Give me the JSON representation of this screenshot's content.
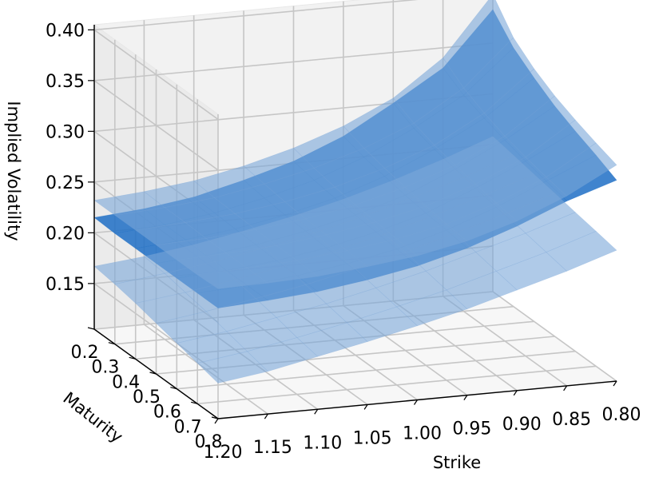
{
  "chart_data": {
    "type": "surface3d",
    "title": "",
    "xlabel": "Strike",
    "ylabel": "Maturity",
    "zlabel": "Implied Volatility",
    "x_ticks": [
      "1.20",
      "1.15",
      "1.10",
      "1.05",
      "1.00",
      "0.95",
      "0.90",
      "0.85",
      "0.80"
    ],
    "y_ticks": [
      "0.2",
      "0.3",
      "0.4",
      "0.5",
      "0.6",
      "0.7",
      "0.8"
    ],
    "z_ticks": [
      "0.15",
      "0.20",
      "0.25",
      "0.30",
      "0.35",
      "0.40"
    ],
    "xlim": [
      0.8,
      1.2
    ],
    "ylim": [
      0.2,
      0.8
    ],
    "zlim": [
      0.105,
      0.405
    ],
    "grid": true,
    "strikes": [
      0.8,
      0.85,
      0.9,
      0.95,
      1.0,
      1.05,
      1.1,
      1.15,
      1.2
    ],
    "maturities": [
      0.2,
      0.3,
      0.4,
      0.5,
      0.6,
      0.7,
      0.8
    ],
    "series": [
      {
        "color": "#1f6fc5",
        "opacity": 0.85,
        "z": [
          [
            0.383,
            0.33,
            0.3,
            0.272,
            0.252,
            0.238,
            0.226,
            0.219,
            0.215
          ],
          [
            0.36,
            0.318,
            0.29,
            0.266,
            0.248,
            0.235,
            0.225,
            0.218,
            0.214
          ],
          [
            0.345,
            0.31,
            0.284,
            0.262,
            0.245,
            0.233,
            0.224,
            0.218,
            0.214
          ],
          [
            0.332,
            0.303,
            0.279,
            0.258,
            0.243,
            0.232,
            0.223,
            0.217,
            0.214
          ],
          [
            0.322,
            0.297,
            0.275,
            0.255,
            0.241,
            0.23,
            0.222,
            0.217,
            0.214
          ],
          [
            0.313,
            0.292,
            0.271,
            0.253,
            0.239,
            0.229,
            0.222,
            0.217,
            0.214
          ],
          [
            0.303,
            0.287,
            0.267,
            0.25,
            0.237,
            0.228,
            0.221,
            0.217,
            0.214
          ]
        ]
      },
      {
        "color": "#7aa7d8",
        "opacity": 0.6,
        "z": [
          [
            0.398,
            0.34,
            0.305,
            0.282,
            0.265,
            0.252,
            0.242,
            0.236,
            0.232
          ],
          [
            0.37,
            0.325,
            0.295,
            0.275,
            0.26,
            0.249,
            0.24,
            0.235,
            0.232
          ],
          [
            0.354,
            0.315,
            0.288,
            0.27,
            0.256,
            0.246,
            0.239,
            0.235,
            0.232
          ],
          [
            0.342,
            0.307,
            0.283,
            0.266,
            0.253,
            0.244,
            0.238,
            0.234,
            0.232
          ],
          [
            0.333,
            0.301,
            0.279,
            0.262,
            0.251,
            0.243,
            0.237,
            0.234,
            0.232
          ],
          [
            0.325,
            0.296,
            0.275,
            0.259,
            0.249,
            0.242,
            0.237,
            0.234,
            0.232
          ],
          [
            0.318,
            0.292,
            0.272,
            0.257,
            0.247,
            0.241,
            0.236,
            0.234,
            0.233
          ]
        ]
      },
      {
        "color": "#7aa7d8",
        "opacity": 0.6,
        "z": [
          [
            0.258,
            0.24,
            0.224,
            0.21,
            0.198,
            0.188,
            0.179,
            0.172,
            0.167
          ],
          [
            0.254,
            0.237,
            0.222,
            0.208,
            0.196,
            0.186,
            0.177,
            0.17,
            0.164
          ],
          [
            0.25,
            0.234,
            0.219,
            0.205,
            0.193,
            0.183,
            0.174,
            0.166,
            0.16
          ],
          [
            0.246,
            0.23,
            0.216,
            0.202,
            0.19,
            0.179,
            0.17,
            0.162,
            0.155
          ],
          [
            0.242,
            0.226,
            0.212,
            0.198,
            0.186,
            0.175,
            0.166,
            0.157,
            0.15
          ],
          [
            0.238,
            0.222,
            0.208,
            0.194,
            0.182,
            0.171,
            0.161,
            0.152,
            0.145
          ],
          [
            0.234,
            0.218,
            0.204,
            0.19,
            0.178,
            0.167,
            0.157,
            0.147,
            0.14
          ]
        ]
      }
    ]
  }
}
